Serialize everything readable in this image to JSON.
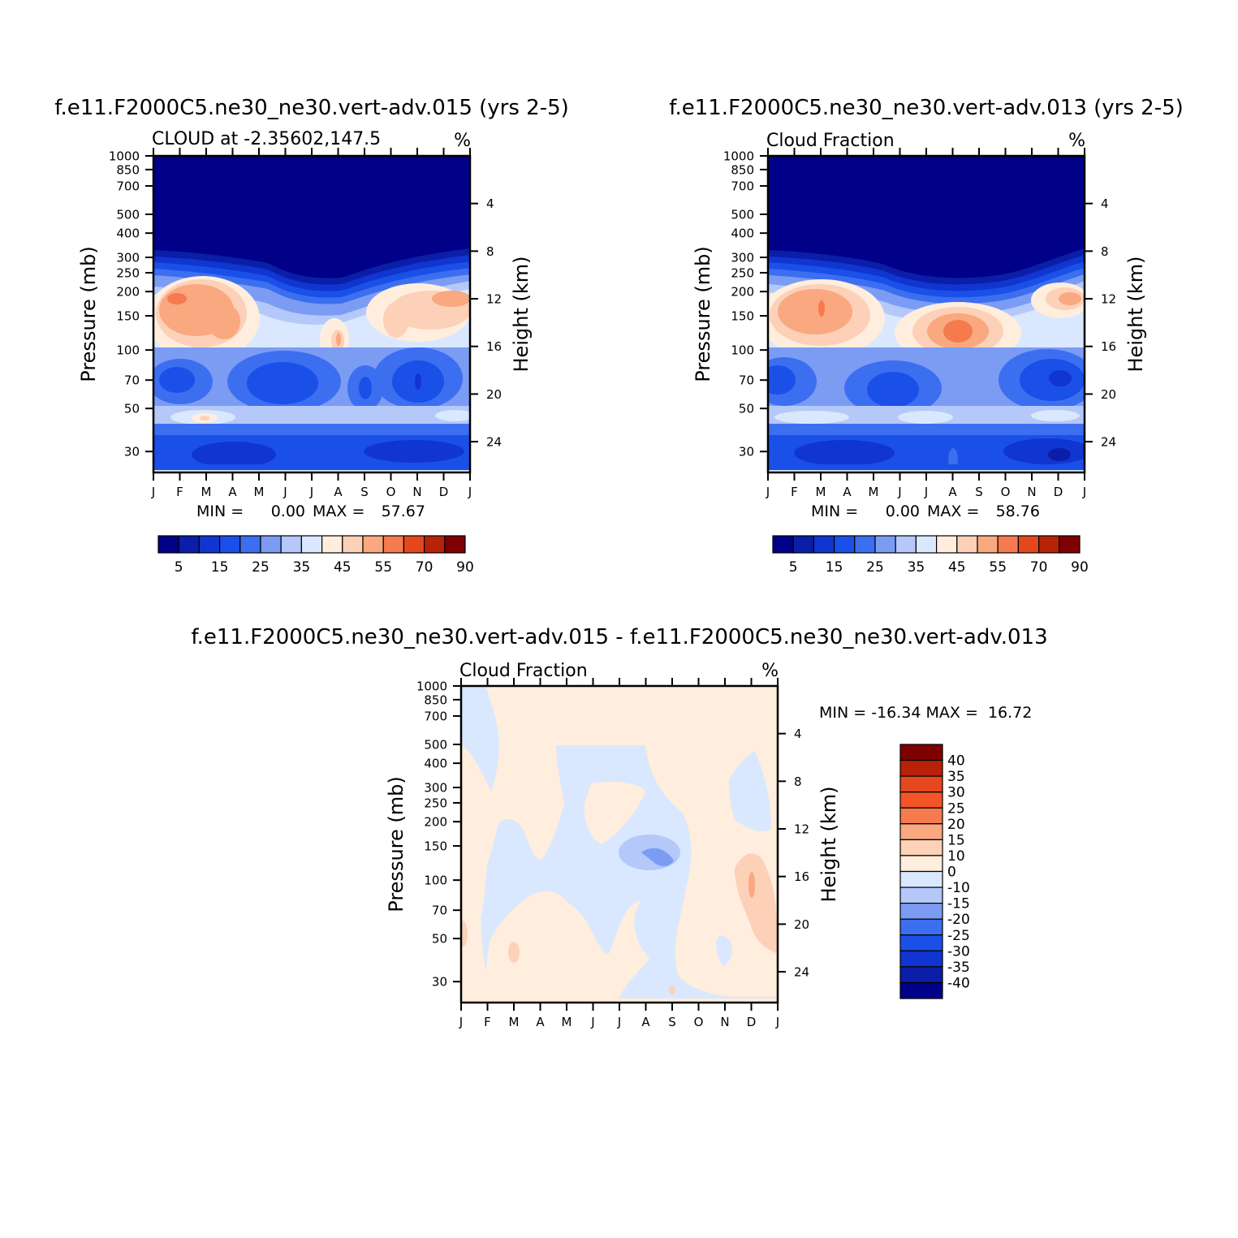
{
  "chart_data": [
    {
      "type": "heatmap",
      "title": "f.e11.F2000C5.ne30_ne30.vert-adv.015 (yrs 2-5)",
      "subtitle": "CLOUD at -2.35602,147.5",
      "units": "%",
      "xlabel": "",
      "ylabel": "Pressure (mb)",
      "y2label": "Height (km)",
      "x_ticks": [
        "J",
        "F",
        "M",
        "A",
        "M",
        "J",
        "J",
        "A",
        "S",
        "O",
        "N",
        "D",
        "J"
      ],
      "y_ticks": [
        "30",
        "50",
        "70",
        "100",
        "150",
        "200",
        "250",
        "300",
        "400",
        "500",
        "700",
        "850",
        "1000"
      ],
      "y2_ticks": [
        "24",
        "20",
        "16",
        "12",
        "8",
        "4"
      ],
      "min_label": "MIN =",
      "min_value": "0.00",
      "max_label": "MAX =",
      "max_value": "57.67",
      "colorbar_labels": [
        "5",
        "15",
        "25",
        "35",
        "45",
        "55",
        "70",
        "90"
      ],
      "grid": false
    },
    {
      "type": "heatmap",
      "title": "f.e11.F2000C5.ne30_ne30.vert-adv.013 (yrs 2-5)",
      "subtitle": "Cloud Fraction",
      "units": "%",
      "xlabel": "",
      "ylabel": "Pressure (mb)",
      "y2label": "Height (km)",
      "x_ticks": [
        "J",
        "F",
        "M",
        "A",
        "M",
        "J",
        "J",
        "A",
        "S",
        "O",
        "N",
        "D",
        "J"
      ],
      "y_ticks": [
        "30",
        "50",
        "70",
        "100",
        "150",
        "200",
        "250",
        "300",
        "400",
        "500",
        "700",
        "850",
        "1000"
      ],
      "y2_ticks": [
        "24",
        "20",
        "16",
        "12",
        "8",
        "4"
      ],
      "min_label": "MIN =",
      "min_value": "0.00",
      "max_label": "MAX =",
      "max_value": "58.76",
      "colorbar_labels": [
        "5",
        "15",
        "25",
        "35",
        "45",
        "55",
        "70",
        "90"
      ],
      "grid": false
    },
    {
      "type": "heatmap",
      "title": "f.e11.F2000C5.ne30_ne30.vert-adv.015 - f.e11.F2000C5.ne30_ne30.vert-adv.013",
      "subtitle": "Cloud Fraction",
      "units": "%",
      "xlabel": "",
      "ylabel": "Pressure (mb)",
      "y2label": "Height (km)",
      "x_ticks": [
        "J",
        "F",
        "M",
        "A",
        "M",
        "J",
        "J",
        "A",
        "S",
        "O",
        "N",
        "D",
        "J"
      ],
      "y_ticks": [
        "30",
        "50",
        "70",
        "100",
        "150",
        "200",
        "250",
        "300",
        "400",
        "500",
        "700",
        "850",
        "1000"
      ],
      "y2_ticks": [
        "24",
        "20",
        "16",
        "12",
        "8",
        "4"
      ],
      "minmax_text": "MIN = -16.34 MAX =  16.72",
      "colorbar_labels": [
        "40",
        "35",
        "30",
        "25",
        "20",
        "15",
        "10",
        "0",
        "-10",
        "-15",
        "-20",
        "-25",
        "-30",
        "-35",
        "-40"
      ],
      "grid": false
    }
  ],
  "colors": {
    "seq_palette": [
      "#000088",
      "#0a1ea8",
      "#1035d0",
      "#1a50e8",
      "#3c6ef0",
      "#7c9cf4",
      "#b4c8fa",
      "#d9e8fe",
      "#ffeedd",
      "#fdd0b8",
      "#f9a880",
      "#f57a4e",
      "#e4481c",
      "#b82208",
      "#7e0000"
    ],
    "diff_palette": [
      "#000088",
      "#0a1ea8",
      "#1035d0",
      "#1a50e8",
      "#3c6ef0",
      "#7c9cf4",
      "#b4c8fa",
      "#d9e8fe",
      "#ffeedd",
      "#fdd0b8",
      "#f9a880",
      "#f57a4e",
      "#f35428",
      "#e4481c",
      "#b82208",
      "#7e0000"
    ]
  }
}
